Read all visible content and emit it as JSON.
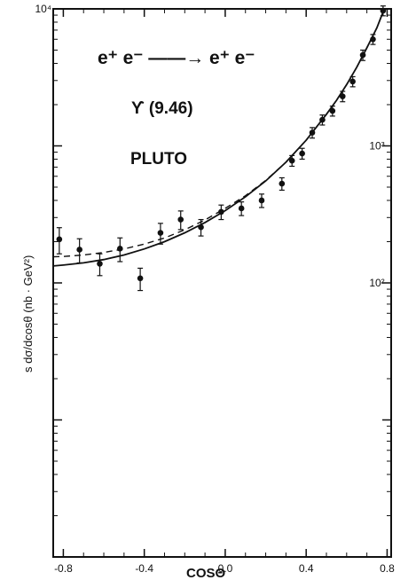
{
  "chart_data": {
    "type": "scatter",
    "title_lines": [
      "e⁺ e⁻ ——→ e⁺ e⁻",
      "ϒ  (9.46)",
      "PLUTO"
    ],
    "xlabel": "COSΘ",
    "ylabel": "s  dσ/dcosθ  (nb · GeV²)",
    "xlim": [
      -0.85,
      0.82
    ],
    "ylim": [
      1,
      10000
    ],
    "yscale": "log",
    "grid": false,
    "x_ticks": [
      {
        "value": -0.8,
        "label": "-0.8"
      },
      {
        "value": -0.4,
        "label": "-0.4"
      },
      {
        "value": 0.0,
        "label": "0.0"
      },
      {
        "value": 0.4,
        "label": "0.4"
      },
      {
        "value": 0.8,
        "label": "0.8"
      }
    ],
    "y_ticks": [
      {
        "value": 100,
        "label": "10²"
      },
      {
        "value": 1000,
        "label": "10³"
      },
      {
        "value": 10000,
        "label": "10⁴"
      }
    ],
    "series": [
      {
        "kind": "points",
        "x": [
          -0.82,
          -0.72,
          -0.62,
          -0.52,
          -0.42,
          -0.32,
          -0.22,
          -0.12,
          -0.02,
          0.08,
          0.18,
          0.28,
          0.33,
          0.38,
          0.43,
          0.48,
          0.53,
          0.58,
          0.63,
          0.68,
          0.73,
          0.78
        ],
        "y": [
          208,
          175,
          138,
          178,
          108,
          232,
          290,
          255,
          330,
          350,
          400,
          530,
          780,
          880,
          1250,
          1550,
          1800,
          2300,
          2950,
          4600,
          6000,
          9700
        ],
        "y_err_low": [
          45,
          35,
          25,
          35,
          20,
          40,
          45,
          35,
          40,
          40,
          45,
          55,
          70,
          80,
          110,
          130,
          150,
          200,
          250,
          400,
          500,
          800
        ],
        "y_err_high": [
          45,
          35,
          25,
          35,
          20,
          40,
          45,
          35,
          40,
          40,
          45,
          55,
          70,
          80,
          110,
          130,
          150,
          200,
          250,
          400,
          500,
          800
        ]
      },
      {
        "kind": "solid-curve",
        "x": [
          -0.85,
          -0.8,
          -0.7,
          -0.6,
          -0.5,
          -0.4,
          -0.3,
          -0.2,
          -0.1,
          0.0,
          0.1,
          0.2,
          0.3,
          0.4,
          0.5,
          0.55,
          0.6,
          0.65,
          0.7,
          0.75,
          0.78
        ],
        "y": [
          133,
          135,
          140,
          148,
          160,
          177,
          200,
          232,
          276,
          337,
          425,
          555,
          760,
          1100,
          1700,
          2150,
          2800,
          3750,
          5200,
          7300,
          9500
        ]
      },
      {
        "kind": "dashed-curve",
        "x": [
          -0.85,
          -0.8,
          -0.7,
          -0.6,
          -0.5,
          -0.4,
          -0.3,
          -0.2,
          -0.1,
          0.0,
          0.1,
          0.2,
          0.3,
          0.4,
          0.5,
          0.55,
          0.6,
          0.65,
          0.7,
          0.75,
          0.78
        ],
        "y": [
          155,
          156,
          160,
          167,
          177,
          192,
          213,
          244,
          288,
          350,
          433,
          560,
          760,
          1100,
          1700,
          2150,
          2800,
          3750,
          5200,
          7300,
          9500
        ]
      }
    ]
  }
}
